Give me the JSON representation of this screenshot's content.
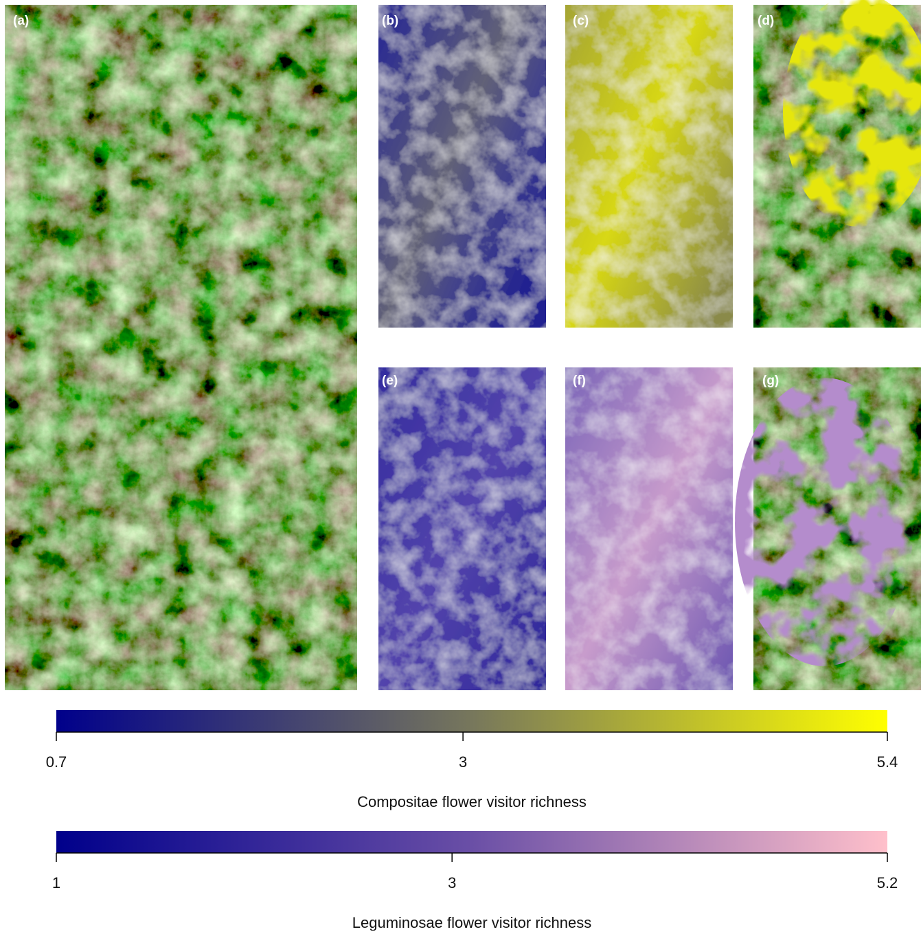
{
  "panels": [
    {
      "label": "(a)"
    },
    {
      "label": "(b)"
    },
    {
      "label": "(c)"
    },
    {
      "label": "(d)"
    },
    {
      "label": "(e)"
    },
    {
      "label": "(f)"
    },
    {
      "label": "(g)"
    }
  ],
  "colorbars": [
    {
      "title": "Compositae flower visitor richness",
      "lim": [
        0.7,
        5.4
      ],
      "ticks": [
        0.7,
        3,
        5.4
      ],
      "colors": [
        "#00008b",
        "#77775c",
        "#ffff00"
      ]
    },
    {
      "title": "Leguminosae flower visitor richness",
      "lim": [
        1,
        5.2
      ],
      "ticks": [
        1,
        3,
        5.2
      ],
      "colors": [
        "#00008b",
        "#6a4fa6",
        "#ffc0cb"
      ]
    }
  ]
}
